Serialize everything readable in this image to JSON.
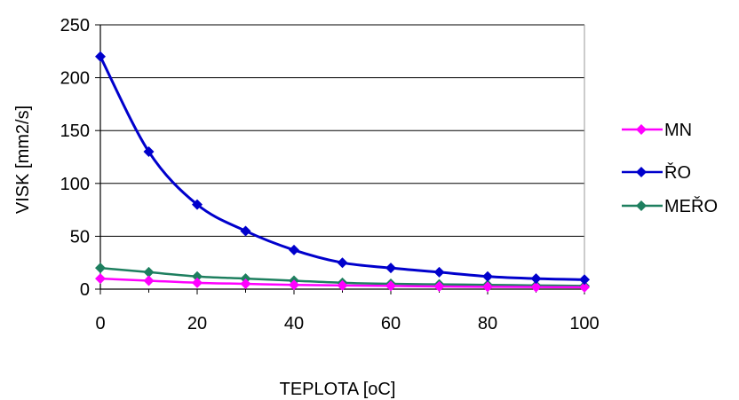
{
  "chart_data": {
    "type": "line",
    "title": "",
    "xlabel": "TEPLOTA  [oC]",
    "ylabel": "VISK  [mm2/s]",
    "x": [
      0,
      10,
      20,
      30,
      40,
      50,
      60,
      70,
      80,
      90,
      100
    ],
    "xlim": [
      0,
      100
    ],
    "ylim": [
      0,
      250
    ],
    "xticks": [
      "0",
      "20",
      "40",
      "60",
      "80",
      "100"
    ],
    "yticks": [
      "0",
      "50",
      "100",
      "150",
      "200",
      "250"
    ],
    "grid": "horizontal",
    "legend_position": "right",
    "series": [
      {
        "name": "MN",
        "color": "#ff00ff",
        "values": [
          10,
          8,
          6,
          5,
          4,
          3.5,
          3,
          2.5,
          2.2,
          2,
          1.8
        ]
      },
      {
        "name": "ŘO",
        "color": "#0000cc",
        "values": [
          220,
          130,
          80,
          55,
          37,
          25,
          20,
          16,
          12,
          10,
          9
        ]
      },
      {
        "name": "MEŘO",
        "color": "#1e7f5f",
        "values": [
          20,
          16,
          12,
          10,
          8,
          6,
          5,
          4.5,
          4,
          3.5,
          3
        ]
      }
    ]
  }
}
